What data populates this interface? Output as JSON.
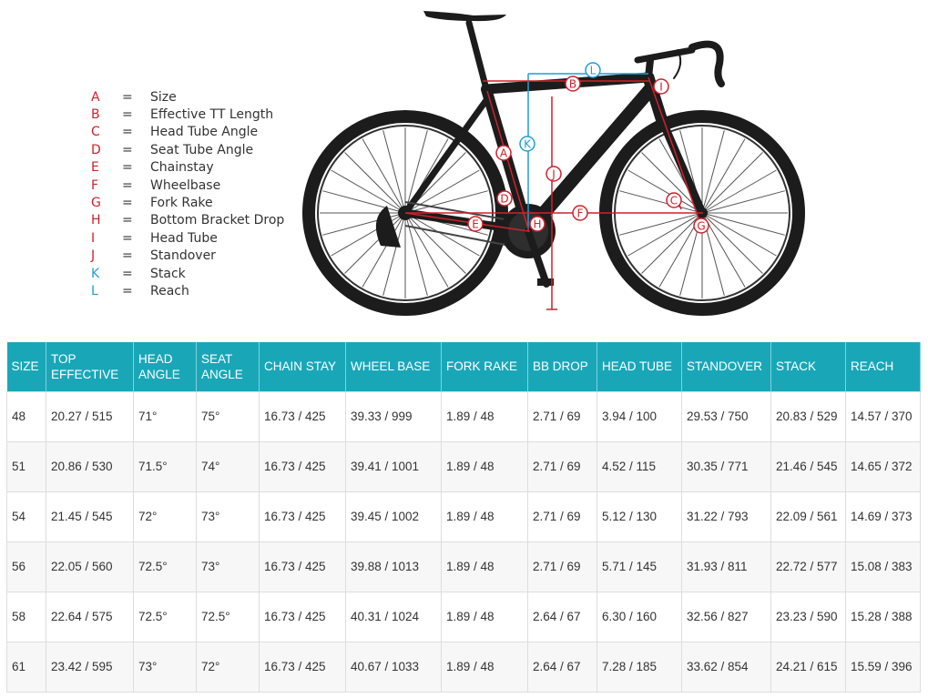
{
  "legend": [
    {
      "key": "A",
      "text": "Size",
      "color": "#d0212b"
    },
    {
      "key": "B",
      "text": "Effective TT Length",
      "color": "#d0212b"
    },
    {
      "key": "C",
      "text": "Head Tube Angle",
      "color": "#d0212b"
    },
    {
      "key": "D",
      "text": "Seat Tube Angle",
      "color": "#d0212b"
    },
    {
      "key": "E",
      "text": "Chainstay",
      "color": "#d0212b"
    },
    {
      "key": "F",
      "text": "Wheelbase",
      "color": "#d0212b"
    },
    {
      "key": "G",
      "text": "Fork Rake",
      "color": "#d0212b"
    },
    {
      "key": "H",
      "text": "Bottom Bracket Drop",
      "color": "#d0212b"
    },
    {
      "key": "I",
      "text": "Head Tube",
      "color": "#d0212b"
    },
    {
      "key": "J",
      "text": "Standover",
      "color": "#d0212b"
    },
    {
      "key": "K",
      "text": "Stack",
      "color": "#1e9fd6"
    },
    {
      "key": "L",
      "text": "Reach",
      "color": "#1e9fd6"
    }
  ],
  "legend_separator": "=",
  "diagram_labels": {
    "A": "A",
    "B": "B",
    "C": "C",
    "D": "D",
    "E": "E",
    "F": "F",
    "G": "G",
    "H": "H",
    "I": "I",
    "J": "J",
    "K": "K",
    "L": "L"
  },
  "colors": {
    "measure_red": "#d0212b",
    "measure_blue": "#1e9fd6",
    "header_teal": "#19a7b8",
    "bike": "#1c1c1c"
  },
  "table": {
    "headers": [
      "SIZE",
      "TOP EFFECTIVE",
      "HEAD ANGLE",
      "SEAT ANGLE",
      "CHAIN STAY",
      "WHEEL BASE",
      "FORK RAKE",
      "BB DROP",
      "HEAD TUBE",
      "STANDOVER",
      "STACK",
      "REACH"
    ],
    "rows": [
      [
        "48",
        "20.27 / 515",
        "71°",
        "75°",
        "16.73 / 425",
        "39.33 / 999",
        "1.89 / 48",
        "2.71 / 69",
        "3.94 / 100",
        "29.53 / 750",
        "20.83 / 529",
        "14.57 / 370"
      ],
      [
        "51",
        "20.86 / 530",
        "71.5°",
        "74°",
        "16.73 / 425",
        "39.41 / 1001",
        "1.89 / 48",
        "2.71 / 69",
        "4.52 / 115",
        "30.35 / 771",
        "21.46 / 545",
        "14.65 / 372"
      ],
      [
        "54",
        "21.45 / 545",
        "72°",
        "73°",
        "16.73 / 425",
        "39.45 / 1002",
        "1.89 / 48",
        "2.71 / 69",
        "5.12 / 130",
        "31.22 / 793",
        "22.09 / 561",
        "14.69 / 373"
      ],
      [
        "56",
        "22.05 / 560",
        "72.5°",
        "73°",
        "16.73 / 425",
        "39.88 / 1013",
        "1.89 / 48",
        "2.71 / 69",
        "5.71 / 145",
        "31.93 / 811",
        "22.72 / 577",
        "15.08 / 383"
      ],
      [
        "58",
        "22.64 / 575",
        "72.5°",
        "72.5°",
        "16.73 / 425",
        "40.31 / 1024",
        "1.89 / 48",
        "2.64 / 67",
        "6.30 / 160",
        "32.56 / 827",
        "23.23 / 590",
        "15.28 / 388"
      ],
      [
        "61",
        "23.42 / 595",
        "73°",
        "72°",
        "16.73 / 425",
        "40.67 / 1033",
        "1.89 / 48",
        "2.64 / 67",
        "7.28 / 185",
        "33.62 / 854",
        "24.21 / 615",
        "15.59 / 396"
      ]
    ]
  }
}
